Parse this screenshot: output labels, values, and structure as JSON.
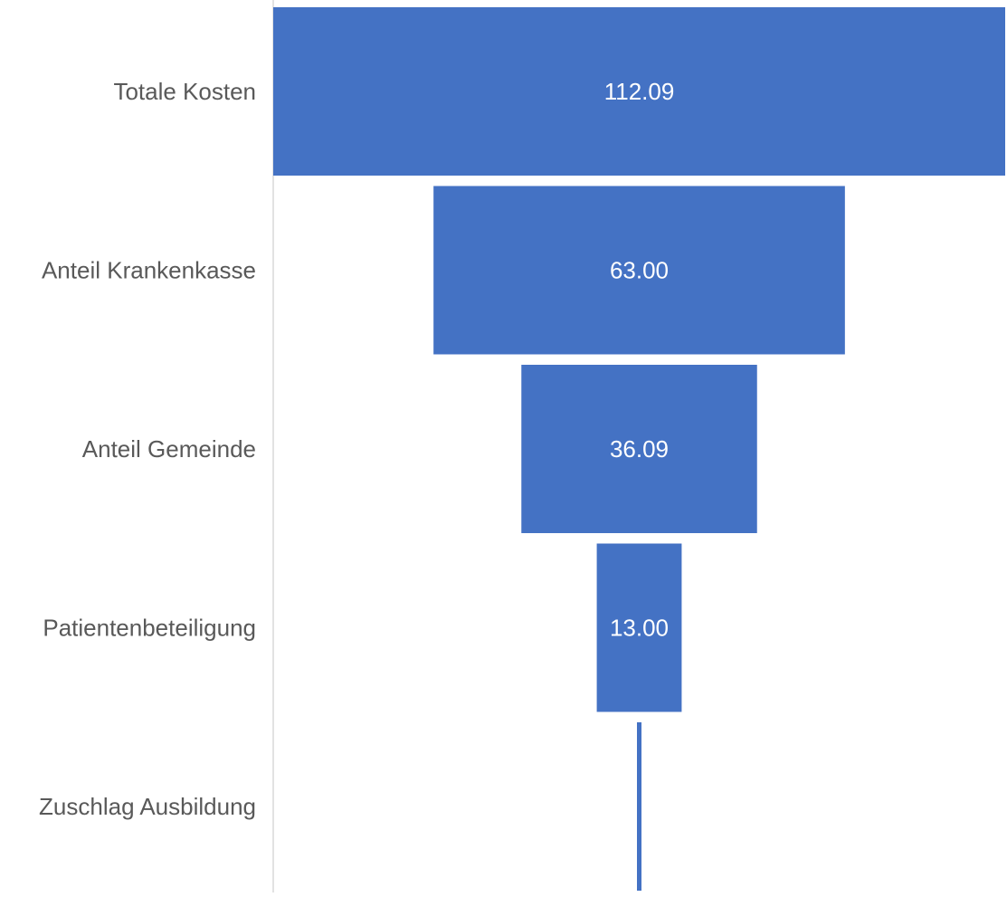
{
  "chart_data": {
    "type": "bar",
    "subtype": "funnel",
    "categories": [
      "Totale Kosten",
      "Anteil Krankenkasse",
      "Anteil Gemeinde",
      "Patientenbeteiligung",
      "Zuschlag Ausbildung"
    ],
    "values": [
      112.09,
      63.0,
      36.09,
      13.0,
      0.5
    ],
    "data_labels": [
      "112.09",
      "63.00",
      "36.09",
      "13.00",
      ""
    ],
    "title": "",
    "xlabel": "",
    "ylabel": "",
    "xlim": [
      0,
      112.09
    ],
    "grid": false,
    "legend": "none",
    "colors": {
      "bar": "#4472c4",
      "category_label": "#595959",
      "data_label": "#ffffff",
      "axis_line": "#d9d9d9"
    }
  }
}
